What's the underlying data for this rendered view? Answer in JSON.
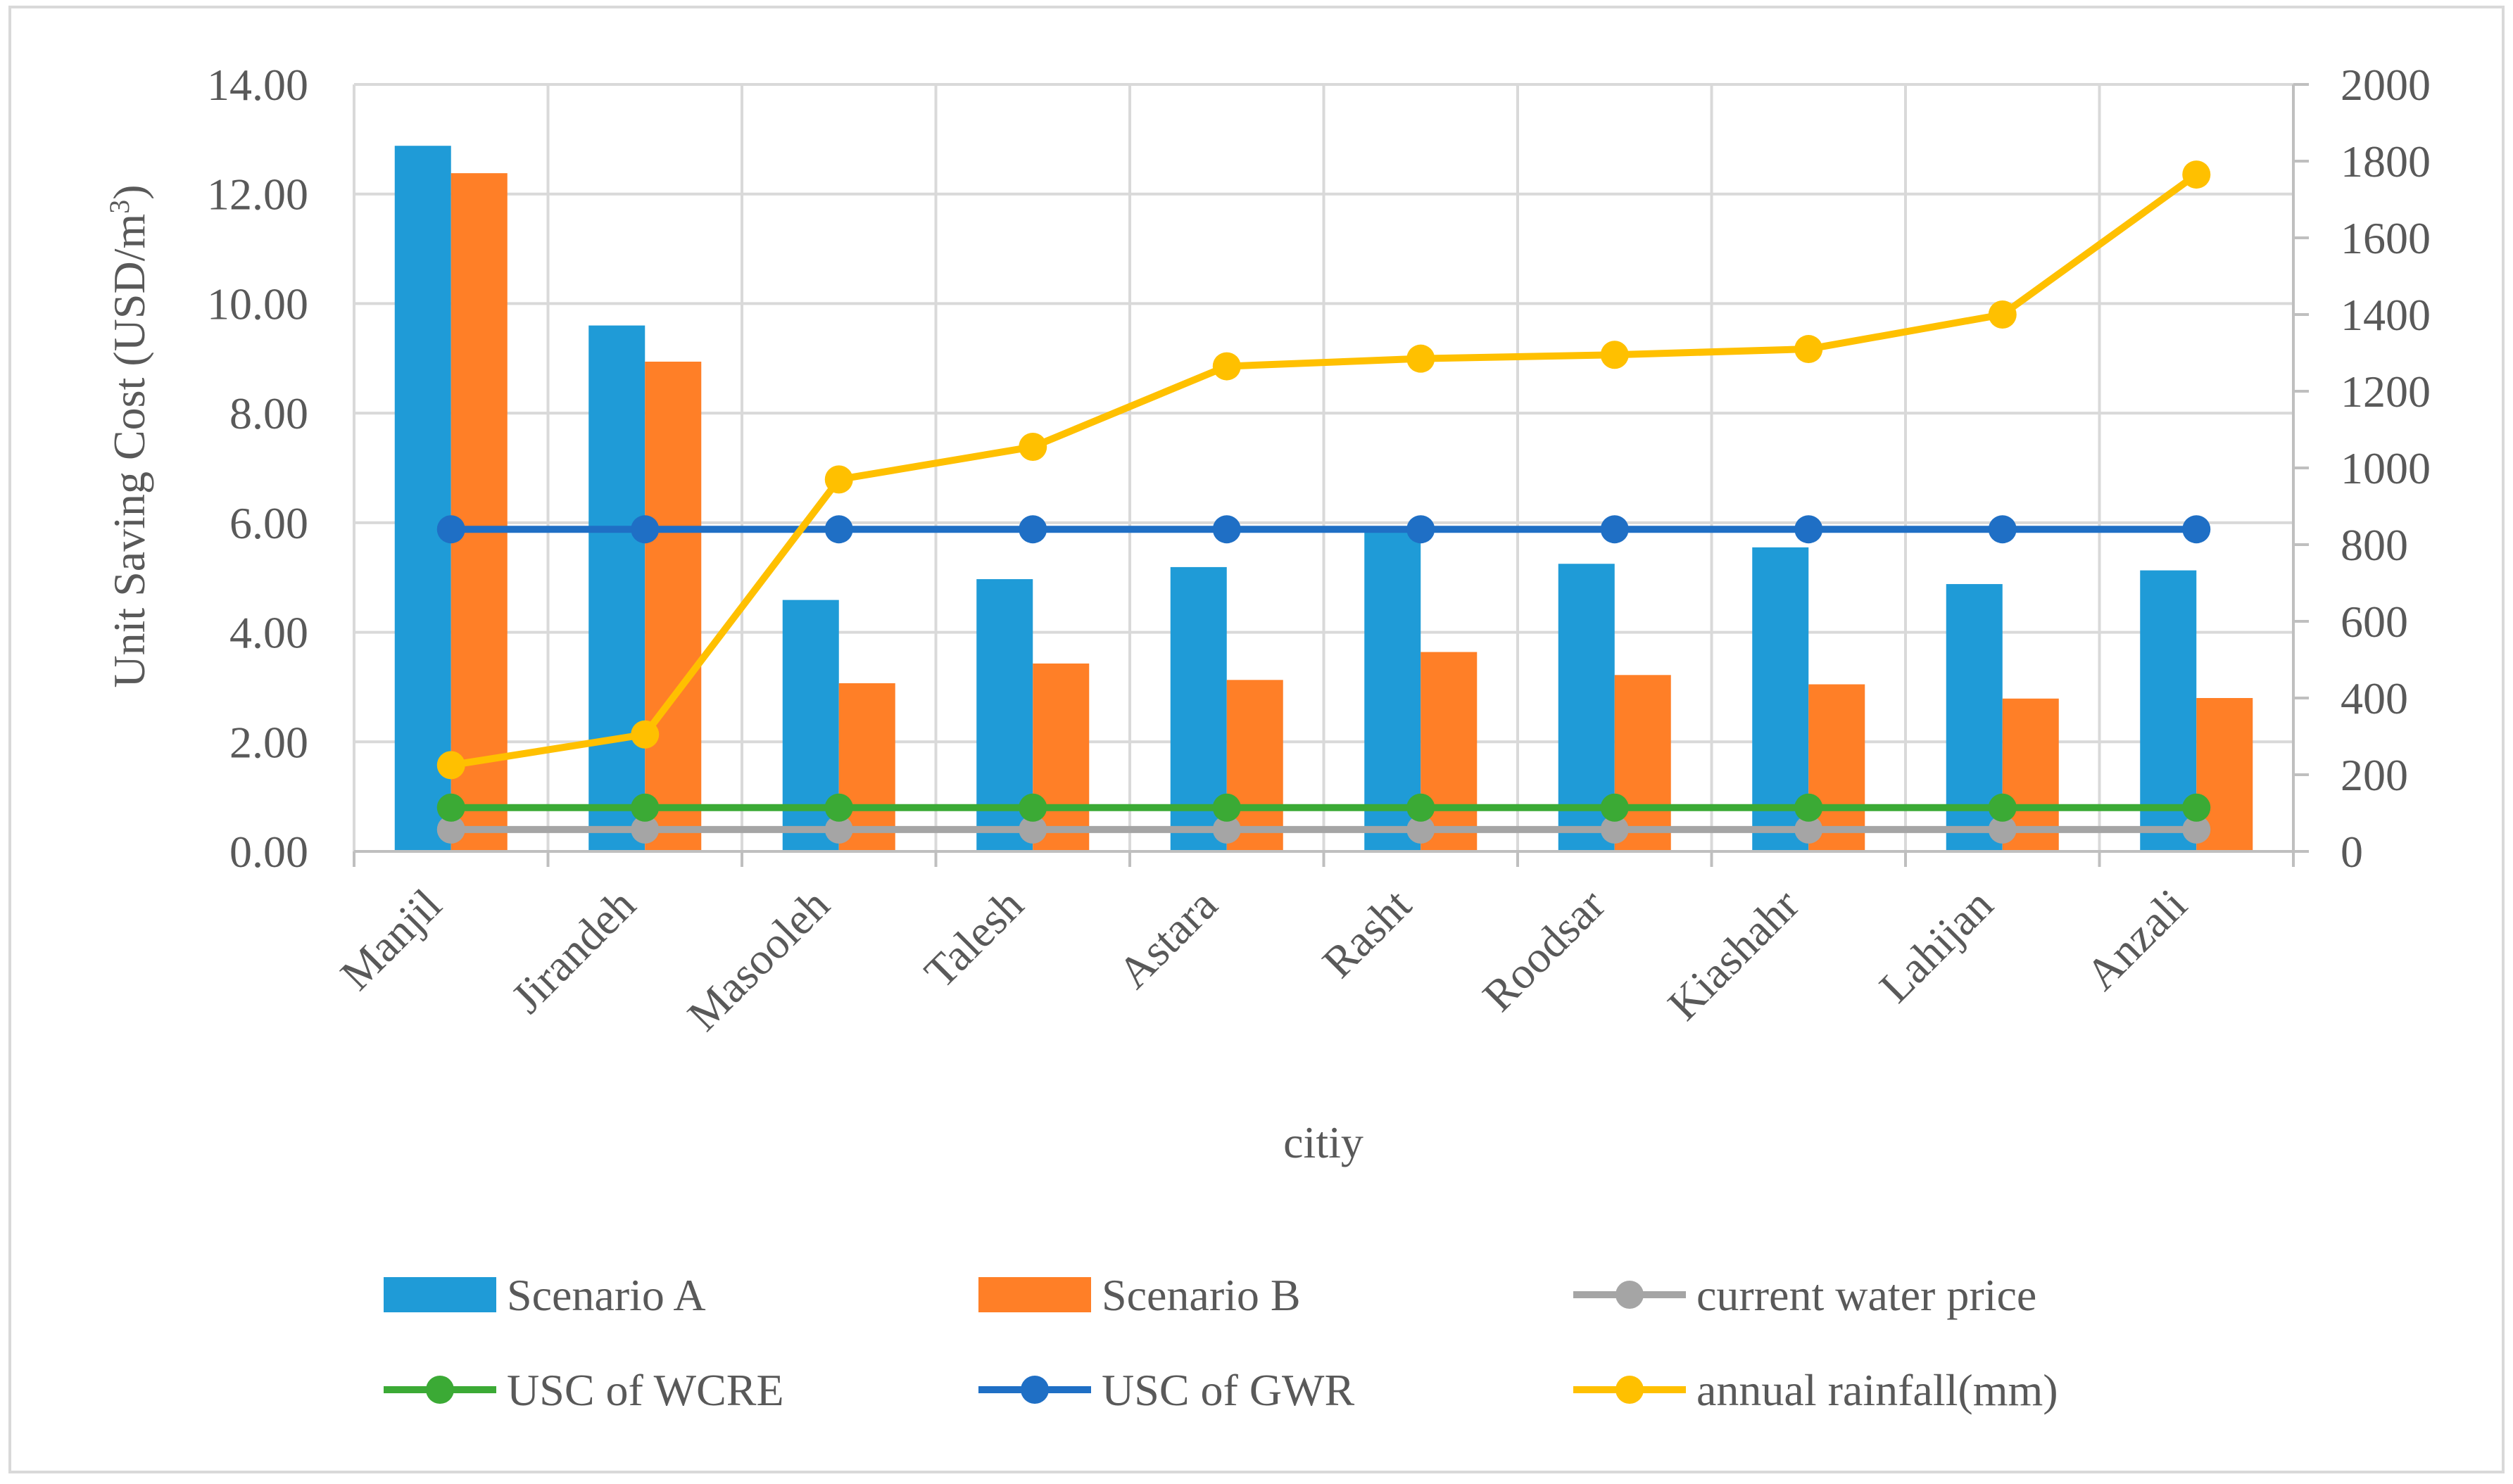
{
  "chart_data": {
    "type": "bar",
    "title": "",
    "xlabel": "citiy",
    "ylabel": "Unit Saving Cost (USD/m³)",
    "ylabel_main": "Unit Saving Cost (USD/m",
    "ylabel_sup": "3",
    "ylabel_close": ")",
    "y2label": "",
    "categories": [
      "Manjil",
      "Jirandeh",
      "Masooleh",
      "Talesh",
      "Astara",
      "Rasht",
      "Roodsar",
      "Kiashahr",
      "Lahijan",
      "Anzali"
    ],
    "ylim": [
      0,
      14
    ],
    "y2lim": [
      0,
      2000
    ],
    "yticks": [
      "0.00",
      "2.00",
      "4.00",
      "6.00",
      "8.00",
      "10.00",
      "12.00",
      "14.00"
    ],
    "y2ticks": [
      "0",
      "200",
      "400",
      "600",
      "800",
      "1000",
      "1200",
      "1400",
      "1600",
      "1800",
      "2000"
    ],
    "grid": true,
    "legend_position": "bottom",
    "series": [
      {
        "name": "Scenario A",
        "kind": "bar",
        "axis": "left",
        "color": "#1F9BD7",
        "values": [
          12.88,
          9.6,
          4.59,
          4.97,
          5.19,
          5.9,
          5.25,
          5.55,
          4.88,
          5.13
        ]
      },
      {
        "name": "Scenario B",
        "kind": "bar",
        "axis": "left",
        "color": "#FF7F27",
        "values": [
          12.38,
          8.94,
          3.07,
          3.43,
          3.13,
          3.64,
          3.22,
          3.05,
          2.79,
          2.8
        ]
      },
      {
        "name": "current water price",
        "kind": "line",
        "axis": "left",
        "color": "#A5A5A5",
        "values": [
          0.4,
          0.4,
          0.4,
          0.4,
          0.4,
          0.4,
          0.4,
          0.4,
          0.4,
          0.4
        ]
      },
      {
        "name": "USC of WCRE",
        "kind": "line",
        "axis": "left",
        "color": "#3BAA35",
        "values": [
          0.8,
          0.8,
          0.8,
          0.8,
          0.8,
          0.8,
          0.8,
          0.8,
          0.8,
          0.8
        ]
      },
      {
        "name": "USC of GWR",
        "kind": "line",
        "axis": "left",
        "color": "#1F6FC5",
        "values": [
          5.88,
          5.88,
          5.88,
          5.88,
          5.88,
          5.88,
          5.88,
          5.88,
          5.88,
          5.88
        ]
      },
      {
        "name": "annual rainfall(mm)",
        "kind": "line",
        "axis": "right",
        "color": "#FFC000",
        "values": [
          225,
          305,
          970,
          1055,
          1265,
          1285,
          1295,
          1310,
          1400,
          1765
        ]
      }
    ]
  }
}
